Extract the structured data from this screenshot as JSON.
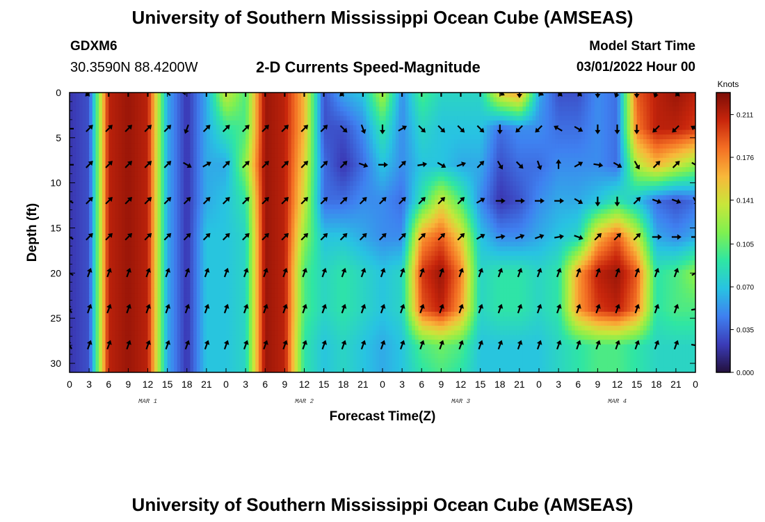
{
  "page": {
    "title_top": "University of Southern Mississippi Ocean Cube (AMSEAS)",
    "title_bottom": "University of Southern Mississippi Ocean Cube (AMSEAS)",
    "station": "GDXM6",
    "coords": "30.3590N  88.4200W",
    "subtitle": "2-D Currents Speed-Magnitude",
    "start_label": "Model Start Time",
    "start_value": "03/01/2022 Hour 00"
  },
  "colors": {
    "ramp": [
      "#23103c",
      "#3b3cb8",
      "#3f80f0",
      "#28c3e2",
      "#2fe6a3",
      "#7ff050",
      "#c8e63a",
      "#f8b83a",
      "#f47024",
      "#c8260c",
      "#7c0c06"
    ],
    "arrow": "#000000",
    "axis": "#000000"
  },
  "chart_data": {
    "type": "heatmap",
    "title": "2-D Currents Speed-Magnitude",
    "xlabel": "Forecast Time(Z)",
    "ylabel": "Depth (ft)",
    "units": "Knots",
    "x_hours_range": [
      0,
      96
    ],
    "ylim": [
      0,
      31
    ],
    "y_inverted": true,
    "x_tick_labels": [
      "0",
      "3",
      "6",
      "9",
      "12",
      "15",
      "18",
      "21",
      "0",
      "3",
      "6",
      "9",
      "12",
      "15",
      "18",
      "21",
      "0",
      "3",
      "6",
      "9",
      "12",
      "15",
      "18",
      "21",
      "0",
      "3",
      "6",
      "9",
      "12",
      "15",
      "18",
      "21",
      "0"
    ],
    "y_ticks": [
      0,
      5,
      10,
      15,
      20,
      25,
      30
    ],
    "day_labels": [
      {
        "text": "MAR 1",
        "hour": 12
      },
      {
        "text": "MAR 2",
        "hour": 36
      },
      {
        "text": "MAR 3",
        "hour": 60
      },
      {
        "text": "MAR 4",
        "hour": 84
      }
    ],
    "colorbar": {
      "min": 0.0,
      "max": 0.229,
      "ticks": [
        0.0,
        0.035,
        0.07,
        0.105,
        0.141,
        0.176,
        0.211
      ],
      "tick_labels": [
        "0.000",
        "0.035",
        "0.070",
        "0.105",
        "0.141",
        "0.176",
        "0.211"
      ]
    },
    "speed_columns_hours": [
      0,
      3,
      6,
      9,
      12,
      15,
      18,
      21,
      24,
      27,
      30,
      33,
      36,
      39,
      42,
      45,
      48,
      51,
      54,
      57,
      60,
      63,
      66,
      69,
      72,
      75,
      78,
      81,
      84,
      87,
      90,
      93,
      96
    ],
    "speed_rows_depth_ft": [
      0,
      4,
      8,
      12,
      16,
      20,
      24,
      28,
      31
    ],
    "speed_knots": [
      [
        0.02,
        0.03,
        0.21,
        0.22,
        0.21,
        0.06,
        0.02,
        0.06,
        0.14,
        0.1,
        0.22,
        0.21,
        0.16,
        0.03,
        0.06,
        0.07,
        0.13,
        0.05,
        0.1,
        0.08,
        0.08,
        0.08,
        0.15,
        0.17,
        0.06,
        0.03,
        0.03,
        0.05,
        0.04,
        0.19,
        0.21,
        0.22,
        0.21
      ],
      [
        0.02,
        0.03,
        0.21,
        0.22,
        0.21,
        0.06,
        0.02,
        0.06,
        0.09,
        0.1,
        0.22,
        0.21,
        0.16,
        0.03,
        0.03,
        0.05,
        0.09,
        0.05,
        0.08,
        0.07,
        0.07,
        0.07,
        0.04,
        0.05,
        0.05,
        0.04,
        0.04,
        0.05,
        0.04,
        0.18,
        0.21,
        0.21,
        0.2
      ],
      [
        0.02,
        0.03,
        0.21,
        0.22,
        0.21,
        0.06,
        0.02,
        0.06,
        0.06,
        0.12,
        0.22,
        0.21,
        0.15,
        0.04,
        0.02,
        0.04,
        0.07,
        0.05,
        0.07,
        0.07,
        0.06,
        0.06,
        0.03,
        0.04,
        0.04,
        0.05,
        0.05,
        0.05,
        0.04,
        0.13,
        0.16,
        0.14,
        0.12
      ],
      [
        0.02,
        0.03,
        0.21,
        0.22,
        0.21,
        0.06,
        0.02,
        0.06,
        0.07,
        0.09,
        0.22,
        0.21,
        0.14,
        0.04,
        0.04,
        0.05,
        0.05,
        0.04,
        0.09,
        0.14,
        0.1,
        0.05,
        0.02,
        0.03,
        0.05,
        0.06,
        0.06,
        0.07,
        0.09,
        0.07,
        0.04,
        0.03,
        0.04
      ],
      [
        0.02,
        0.03,
        0.21,
        0.22,
        0.21,
        0.06,
        0.02,
        0.07,
        0.07,
        0.08,
        0.22,
        0.21,
        0.12,
        0.07,
        0.07,
        0.06,
        0.05,
        0.05,
        0.17,
        0.19,
        0.15,
        0.07,
        0.05,
        0.05,
        0.06,
        0.07,
        0.08,
        0.16,
        0.19,
        0.14,
        0.06,
        0.05,
        0.06
      ],
      [
        0.02,
        0.03,
        0.21,
        0.22,
        0.21,
        0.06,
        0.02,
        0.07,
        0.07,
        0.08,
        0.22,
        0.21,
        0.1,
        0.08,
        0.09,
        0.08,
        0.07,
        0.08,
        0.2,
        0.22,
        0.18,
        0.08,
        0.09,
        0.09,
        0.08,
        0.09,
        0.17,
        0.21,
        0.22,
        0.19,
        0.09,
        0.1,
        0.12
      ],
      [
        0.02,
        0.03,
        0.21,
        0.22,
        0.21,
        0.06,
        0.02,
        0.07,
        0.07,
        0.08,
        0.22,
        0.21,
        0.1,
        0.08,
        0.09,
        0.08,
        0.07,
        0.08,
        0.19,
        0.21,
        0.17,
        0.08,
        0.09,
        0.09,
        0.08,
        0.09,
        0.17,
        0.2,
        0.21,
        0.18,
        0.09,
        0.1,
        0.1
      ],
      [
        0.02,
        0.03,
        0.21,
        0.22,
        0.21,
        0.06,
        0.02,
        0.07,
        0.07,
        0.08,
        0.22,
        0.21,
        0.09,
        0.07,
        0.08,
        0.07,
        0.06,
        0.07,
        0.1,
        0.11,
        0.1,
        0.07,
        0.07,
        0.07,
        0.07,
        0.08,
        0.09,
        0.1,
        0.1,
        0.09,
        0.08,
        0.08,
        0.08
      ],
      [
        0.02,
        0.03,
        0.21,
        0.22,
        0.21,
        0.06,
        0.02,
        0.07,
        0.07,
        0.08,
        0.22,
        0.21,
        0.09,
        0.07,
        0.08,
        0.07,
        0.06,
        0.07,
        0.09,
        0.1,
        0.09,
        0.07,
        0.07,
        0.07,
        0.07,
        0.08,
        0.09,
        0.1,
        0.1,
        0.09,
        0.08,
        0.08,
        0.08
      ]
    ],
    "vector_rows_depth_ft": [
      0,
      4,
      8,
      12,
      16,
      20,
      24,
      28
    ],
    "vector_columns_hours": [
      0,
      3,
      6,
      9,
      12,
      15,
      18,
      21,
      24,
      27,
      30,
      33,
      36,
      39,
      42,
      45,
      48,
      51,
      54,
      57,
      60,
      63,
      66,
      69,
      72,
      75,
      78,
      81,
      84,
      87,
      90,
      93,
      96
    ],
    "vector_direction_deg": [
      [
        225,
        225,
        0,
        0,
        0,
        315,
        270,
        0,
        0,
        0,
        0,
        0,
        0,
        0,
        225,
        0,
        0,
        0,
        0,
        0,
        0,
        0,
        120,
        180,
        120,
        135,
        135,
        180,
        200,
        180,
        200,
        135,
        135
      ],
      [
        270,
        45,
        45,
        45,
        45,
        45,
        200,
        45,
        45,
        45,
        45,
        45,
        45,
        45,
        135,
        160,
        180,
        60,
        135,
        135,
        135,
        135,
        180,
        225,
        225,
        300,
        120,
        180,
        180,
        180,
        225,
        225,
        300
      ],
      [
        270,
        45,
        45,
        45,
        45,
        45,
        120,
        60,
        45,
        45,
        45,
        45,
        45,
        45,
        45,
        110,
        90,
        45,
        80,
        120,
        70,
        45,
        150,
        135,
        160,
        0,
        60,
        100,
        120,
        150,
        45,
        45,
        120
      ],
      [
        300,
        45,
        45,
        45,
        45,
        45,
        45,
        45,
        45,
        45,
        45,
        45,
        45,
        45,
        45,
        45,
        45,
        45,
        45,
        45,
        45,
        60,
        90,
        90,
        90,
        90,
        120,
        180,
        180,
        45,
        110,
        110,
        150
      ],
      [
        300,
        45,
        45,
        45,
        45,
        45,
        45,
        45,
        45,
        45,
        45,
        45,
        45,
        45,
        45,
        45,
        45,
        45,
        45,
        45,
        45,
        60,
        80,
        70,
        70,
        80,
        110,
        45,
        45,
        45,
        90,
        90,
        90
      ],
      [
        300,
        20,
        20,
        20,
        20,
        20,
        20,
        20,
        20,
        20,
        20,
        20,
        20,
        20,
        20,
        20,
        20,
        20,
        20,
        20,
        20,
        20,
        20,
        20,
        20,
        20,
        20,
        20,
        20,
        20,
        20,
        20,
        60
      ],
      [
        330,
        20,
        20,
        20,
        20,
        20,
        20,
        20,
        20,
        20,
        20,
        20,
        20,
        20,
        20,
        20,
        20,
        20,
        20,
        20,
        20,
        20,
        20,
        20,
        20,
        20,
        20,
        20,
        20,
        20,
        20,
        20,
        80
      ],
      [
        330,
        20,
        20,
        20,
        20,
        20,
        20,
        20,
        20,
        20,
        20,
        20,
        20,
        20,
        20,
        20,
        20,
        20,
        20,
        20,
        20,
        20,
        20,
        20,
        20,
        20,
        20,
        20,
        20,
        20,
        20,
        20,
        100
      ]
    ]
  }
}
